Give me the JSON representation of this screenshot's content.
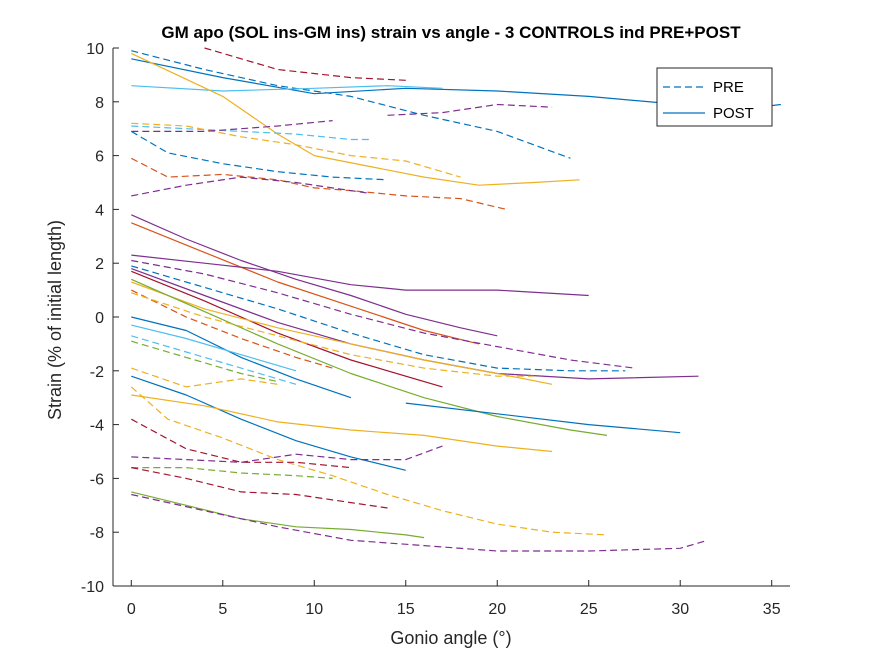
{
  "chart_data": {
    "type": "line",
    "title": "GM apo (SOL ins-GM ins) strain vs angle - 3 CONTROLS ind PRE+POST",
    "xlabel": "Gonio angle (°)",
    "ylabel": "Strain (% of initial length)",
    "xlim": [
      -1,
      36
    ],
    "ylim": [
      -10,
      10
    ],
    "xticks": [
      0,
      5,
      10,
      15,
      20,
      25,
      30,
      35
    ],
    "yticks": [
      -10,
      -8,
      -6,
      -4,
      -2,
      0,
      2,
      4,
      6,
      8,
      10
    ],
    "grid": false,
    "legend": {
      "placement": "top-right",
      "entries": [
        {
          "label": "PRE",
          "style": "dashed",
          "color": "#0072BD"
        },
        {
          "label": "POST",
          "style": "solid",
          "color": "#0072BD"
        }
      ]
    },
    "series": [
      {
        "color": "#A2142F",
        "style": "dashed",
        "points": [
          [
            4,
            10
          ],
          [
            8,
            9.2
          ],
          [
            12,
            8.9
          ],
          [
            15,
            8.8
          ]
        ]
      },
      {
        "color": "#0072BD",
        "style": "dashed",
        "points": [
          [
            0,
            9.9
          ],
          [
            4,
            9.2
          ],
          [
            8,
            8.6
          ],
          [
            12,
            8.2
          ],
          [
            16,
            7.5
          ],
          [
            20,
            6.9
          ],
          [
            24,
            5.9
          ]
        ]
      },
      {
        "color": "#0072BD",
        "style": "solid",
        "points": [
          [
            0,
            9.6
          ],
          [
            5,
            8.9
          ],
          [
            10,
            8.3
          ],
          [
            15,
            8.5
          ],
          [
            20,
            8.4
          ],
          [
            25,
            8.2
          ],
          [
            30,
            7.9
          ],
          [
            33,
            7.7
          ],
          [
            35.5,
            7.9
          ]
        ]
      },
      {
        "color": "#4DBEEE",
        "style": "solid",
        "points": [
          [
            0,
            8.6
          ],
          [
            5,
            8.4
          ],
          [
            10,
            8.5
          ],
          [
            14,
            8.6
          ],
          [
            17,
            8.5
          ]
        ]
      },
      {
        "color": "#EDB120",
        "style": "solid",
        "points": [
          [
            0,
            9.8
          ],
          [
            5,
            8.2
          ],
          [
            8,
            6.8
          ],
          [
            10,
            6.0
          ],
          [
            13,
            5.6
          ],
          [
            16,
            5.2
          ],
          [
            19,
            4.9
          ],
          [
            22,
            5.0
          ],
          [
            24.5,
            5.1
          ]
        ]
      },
      {
        "color": "#7E2F8E",
        "style": "dashed",
        "points": [
          [
            14,
            7.5
          ],
          [
            17,
            7.6
          ],
          [
            20,
            7.9
          ],
          [
            23,
            7.8
          ]
        ]
      },
      {
        "color": "#4DBEEE",
        "style": "dashed",
        "points": [
          [
            0,
            7.1
          ],
          [
            3,
            7.0
          ],
          [
            6,
            6.9
          ],
          [
            9,
            6.8
          ],
          [
            12,
            6.6
          ],
          [
            13,
            6.6
          ]
        ]
      },
      {
        "color": "#EDB120",
        "style": "dashed",
        "points": [
          [
            0,
            7.2
          ],
          [
            3,
            7.1
          ],
          [
            6,
            6.7
          ],
          [
            9,
            6.4
          ],
          [
            12,
            6.0
          ],
          [
            15,
            5.8
          ],
          [
            18,
            5.2
          ]
        ]
      },
      {
        "color": "#7E2F8E",
        "style": "dashed",
        "points": [
          [
            0,
            6.9
          ],
          [
            4,
            6.9
          ],
          [
            8,
            7.1
          ],
          [
            11,
            7.3
          ]
        ]
      },
      {
        "color": "#0072BD",
        "style": "dashed",
        "points": [
          [
            0,
            6.9
          ],
          [
            2,
            6.1
          ],
          [
            5,
            5.7
          ],
          [
            8,
            5.4
          ],
          [
            11,
            5.2
          ],
          [
            14,
            5.1
          ]
        ]
      },
      {
        "color": "#D95319",
        "style": "dashed",
        "points": [
          [
            0,
            5.9
          ],
          [
            2,
            5.2
          ],
          [
            5,
            5.3
          ],
          [
            8,
            5.1
          ],
          [
            10,
            4.8
          ],
          [
            12,
            4.7
          ],
          [
            15,
            4.5
          ],
          [
            18,
            4.4
          ],
          [
            20.5,
            4.0
          ]
        ]
      },
      {
        "color": "#7E2F8E",
        "style": "dashed",
        "points": [
          [
            0,
            4.5
          ],
          [
            3,
            4.9
          ],
          [
            6,
            5.2
          ],
          [
            9,
            5.0
          ],
          [
            12,
            4.7
          ],
          [
            13,
            4.6
          ]
        ]
      },
      {
        "color": "#7E2F8E",
        "style": "solid",
        "points": [
          [
            0,
            3.8
          ],
          [
            3,
            2.9
          ],
          [
            6,
            2.1
          ],
          [
            9,
            1.4
          ],
          [
            12,
            0.8
          ],
          [
            15,
            0.1
          ],
          [
            18,
            -0.4
          ],
          [
            20,
            -0.7
          ]
        ]
      },
      {
        "color": "#D95319",
        "style": "solid",
        "points": [
          [
            0,
            3.5
          ],
          [
            4,
            2.4
          ],
          [
            8,
            1.3
          ],
          [
            12,
            0.4
          ],
          [
            16,
            -0.5
          ],
          [
            19,
            -1.0
          ]
        ]
      },
      {
        "color": "#7E2F8E",
        "style": "solid",
        "points": [
          [
            0,
            2.3
          ],
          [
            4,
            2.0
          ],
          [
            8,
            1.7
          ],
          [
            12,
            1.2
          ],
          [
            15,
            1.0
          ],
          [
            20,
            1.0
          ],
          [
            25,
            0.8
          ]
        ]
      },
      {
        "color": "#7E2F8E",
        "style": "dashed",
        "points": [
          [
            0,
            2.1
          ],
          [
            4,
            1.6
          ],
          [
            8,
            0.9
          ],
          [
            12,
            0.1
          ],
          [
            16,
            -0.6
          ],
          [
            20,
            -1.1
          ],
          [
            24,
            -1.6
          ],
          [
            27.5,
            -1.9
          ]
        ]
      },
      {
        "color": "#0072BD",
        "style": "dashed",
        "points": [
          [
            0,
            1.9
          ],
          [
            4,
            1.1
          ],
          [
            8,
            0.3
          ],
          [
            12,
            -0.6
          ],
          [
            16,
            -1.4
          ],
          [
            20,
            -1.9
          ],
          [
            24,
            -2.0
          ],
          [
            27,
            -2.0
          ]
        ]
      },
      {
        "color": "#7E2F8E",
        "style": "solid",
        "points": [
          [
            0,
            1.8
          ],
          [
            4,
            0.8
          ],
          [
            8,
            -0.2
          ],
          [
            12,
            -1.0
          ],
          [
            16,
            -1.6
          ],
          [
            20,
            -2.1
          ],
          [
            25,
            -2.3
          ],
          [
            31,
            -2.2
          ]
        ]
      },
      {
        "color": "#A2142F",
        "style": "solid",
        "points": [
          [
            0,
            1.7
          ],
          [
            4,
            0.6
          ],
          [
            8,
            -0.6
          ],
          [
            12,
            -1.6
          ],
          [
            16,
            -2.4
          ],
          [
            17,
            -2.6
          ]
        ]
      },
      {
        "color": "#EDB120",
        "style": "solid",
        "points": [
          [
            0,
            1.3
          ],
          [
            4,
            0.3
          ],
          [
            8,
            -0.4
          ],
          [
            12,
            -1.0
          ],
          [
            16,
            -1.6
          ],
          [
            20,
            -2.1
          ],
          [
            23,
            -2.5
          ]
        ]
      },
      {
        "color": "#77AC30",
        "style": "solid",
        "points": [
          [
            0,
            1.4
          ],
          [
            4,
            0.2
          ],
          [
            8,
            -1.0
          ],
          [
            12,
            -2.1
          ],
          [
            16,
            -3.0
          ],
          [
            20,
            -3.7
          ],
          [
            24,
            -4.2
          ],
          [
            26,
            -4.4
          ]
        ]
      },
      {
        "color": "#D95319",
        "style": "dashed",
        "points": [
          [
            0,
            1.0
          ],
          [
            3,
            0.0
          ],
          [
            6,
            -0.8
          ],
          [
            9,
            -1.5
          ],
          [
            11,
            -1.9
          ]
        ]
      },
      {
        "color": "#EDB120",
        "style": "dashed",
        "points": [
          [
            0,
            0.9
          ],
          [
            4,
            0.0
          ],
          [
            8,
            -0.7
          ],
          [
            12,
            -1.4
          ],
          [
            16,
            -1.9
          ],
          [
            20,
            -2.2
          ],
          [
            22,
            -2.2
          ]
        ]
      },
      {
        "color": "#0072BD",
        "style": "solid",
        "points": [
          [
            0,
            0.0
          ],
          [
            3,
            -0.5
          ],
          [
            6,
            -1.5
          ],
          [
            9,
            -2.3
          ],
          [
            12,
            -3.0
          ]
        ]
      },
      {
        "color": "#4DBEEE",
        "style": "solid",
        "points": [
          [
            0,
            -0.3
          ],
          [
            3,
            -0.8
          ],
          [
            6,
            -1.4
          ],
          [
            9,
            -2.0
          ]
        ]
      },
      {
        "color": "#4DBEEE",
        "style": "dashed",
        "points": [
          [
            0,
            -0.7
          ],
          [
            3,
            -1.3
          ],
          [
            6,
            -1.9
          ],
          [
            9,
            -2.5
          ]
        ]
      },
      {
        "color": "#77AC30",
        "style": "dashed",
        "points": [
          [
            0,
            -0.9
          ],
          [
            3,
            -1.5
          ],
          [
            6,
            -2.1
          ],
          [
            8,
            -2.4
          ]
        ]
      },
      {
        "color": "#EDB120",
        "style": "dashed",
        "points": [
          [
            0,
            -1.9
          ],
          [
            3,
            -2.6
          ],
          [
            6,
            -2.3
          ],
          [
            8,
            -2.5
          ]
        ]
      },
      {
        "color": "#0072BD",
        "style": "solid",
        "points": [
          [
            0,
            -2.2
          ],
          [
            3,
            -2.9
          ],
          [
            6,
            -3.8
          ],
          [
            9,
            -4.6
          ],
          [
            12,
            -5.2
          ],
          [
            15,
            -5.7
          ]
        ]
      },
      {
        "color": "#0072BD",
        "style": "solid",
        "points": [
          [
            15,
            -3.2
          ],
          [
            20,
            -3.6
          ],
          [
            25,
            -4.0
          ],
          [
            30,
            -4.3
          ]
        ]
      },
      {
        "color": "#EDB120",
        "style": "solid",
        "points": [
          [
            0,
            -2.9
          ],
          [
            4,
            -3.3
          ],
          [
            8,
            -3.9
          ],
          [
            12,
            -4.2
          ],
          [
            16,
            -4.4
          ],
          [
            20,
            -4.8
          ],
          [
            23,
            -5.0
          ]
        ]
      },
      {
        "color": "#EDB120",
        "style": "dashed",
        "points": [
          [
            0,
            -2.6
          ],
          [
            2,
            -3.8
          ],
          [
            5,
            -4.5
          ],
          [
            8,
            -5.3
          ],
          [
            11,
            -5.9
          ],
          [
            14,
            -6.6
          ],
          [
            17,
            -7.2
          ],
          [
            20,
            -7.7
          ],
          [
            23,
            -8.0
          ],
          [
            26,
            -8.1
          ]
        ]
      },
      {
        "color": "#A2142F",
        "style": "dashed",
        "points": [
          [
            0,
            -3.8
          ],
          [
            3,
            -4.9
          ],
          [
            6,
            -5.4
          ],
          [
            9,
            -5.4
          ],
          [
            12,
            -5.6
          ]
        ]
      },
      {
        "color": "#7E2F8E",
        "style": "dashed",
        "points": [
          [
            0,
            -5.2
          ],
          [
            3,
            -5.3
          ],
          [
            6,
            -5.4
          ],
          [
            9,
            -5.1
          ],
          [
            12,
            -5.3
          ],
          [
            15,
            -5.3
          ],
          [
            17,
            -4.8
          ]
        ]
      },
      {
        "color": "#77AC30",
        "style": "dashed",
        "points": [
          [
            0,
            -5.6
          ],
          [
            3,
            -5.6
          ],
          [
            6,
            -5.8
          ],
          [
            9,
            -5.9
          ],
          [
            11,
            -6.0
          ]
        ]
      },
      {
        "color": "#A2142F",
        "style": "dashed",
        "points": [
          [
            0,
            -5.6
          ],
          [
            3,
            -6.0
          ],
          [
            6,
            -6.5
          ],
          [
            9,
            -6.6
          ],
          [
            12,
            -6.9
          ],
          [
            14,
            -7.1
          ]
        ]
      },
      {
        "color": "#77AC30",
        "style": "solid",
        "points": [
          [
            0,
            -6.5
          ],
          [
            3,
            -7.0
          ],
          [
            6,
            -7.5
          ],
          [
            9,
            -7.8
          ],
          [
            12,
            -7.9
          ],
          [
            15,
            -8.1
          ],
          [
            16,
            -8.2
          ]
        ]
      },
      {
        "color": "#7E2F8E",
        "style": "dashed",
        "points": [
          [
            0,
            -6.6
          ],
          [
            4,
            -7.2
          ],
          [
            8,
            -7.8
          ],
          [
            12,
            -8.3
          ],
          [
            16,
            -8.5
          ],
          [
            20,
            -8.7
          ],
          [
            25,
            -8.7
          ],
          [
            30,
            -8.6
          ],
          [
            31.5,
            -8.3
          ]
        ]
      }
    ]
  }
}
